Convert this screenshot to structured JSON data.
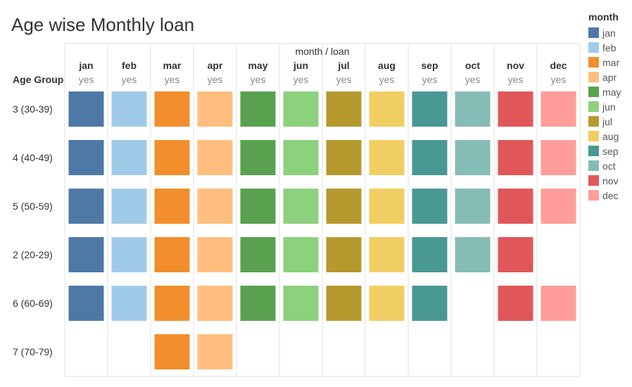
{
  "chart_data": {
    "type": "heatmap",
    "title": "Age wise Monthly loan",
    "column_header": "month  /  loan",
    "row_header": "Age Group",
    "columns": [
      {
        "month": "jan",
        "loan": "yes"
      },
      {
        "month": "feb",
        "loan": "yes"
      },
      {
        "month": "mar",
        "loan": "yes"
      },
      {
        "month": "apr",
        "loan": "yes"
      },
      {
        "month": "may",
        "loan": "yes"
      },
      {
        "month": "jun",
        "loan": "yes"
      },
      {
        "month": "jul",
        "loan": "yes"
      },
      {
        "month": "aug",
        "loan": "yes"
      },
      {
        "month": "sep",
        "loan": "yes"
      },
      {
        "month": "oct",
        "loan": "yes"
      },
      {
        "month": "nov",
        "loan": "yes"
      },
      {
        "month": "dec",
        "loan": "yes"
      }
    ],
    "rows": [
      "3 (30-39)",
      "4 (40-49)",
      "5 (50-59)",
      "2 (20-29)",
      "6 (60-69)",
      "7 (70-79)"
    ],
    "present": [
      [
        1,
        1,
        1,
        1,
        1,
        1,
        1,
        1,
        1,
        1,
        1,
        1
      ],
      [
        1,
        1,
        1,
        1,
        1,
        1,
        1,
        1,
        1,
        1,
        1,
        1
      ],
      [
        1,
        1,
        1,
        1,
        1,
        1,
        1,
        1,
        1,
        1,
        1,
        1
      ],
      [
        1,
        1,
        1,
        1,
        1,
        1,
        1,
        1,
        1,
        1,
        1,
        0
      ],
      [
        1,
        1,
        1,
        1,
        1,
        1,
        1,
        1,
        1,
        0,
        1,
        1
      ],
      [
        0,
        0,
        1,
        1,
        0,
        0,
        0,
        0,
        0,
        0,
        0,
        0
      ]
    ],
    "legend": {
      "title": "month",
      "items": [
        {
          "label": "jan",
          "color": "#4e79a7"
        },
        {
          "label": "feb",
          "color": "#a0cbe8"
        },
        {
          "label": "mar",
          "color": "#f28e2b"
        },
        {
          "label": "apr",
          "color": "#ffbe7d"
        },
        {
          "label": "may",
          "color": "#59a14f"
        },
        {
          "label": "jun",
          "color": "#8cd17d"
        },
        {
          "label": "jul",
          "color": "#b6992d"
        },
        {
          "label": "aug",
          "color": "#f1ce63"
        },
        {
          "label": "sep",
          "color": "#499894"
        },
        {
          "label": "oct",
          "color": "#86bcb6"
        },
        {
          "label": "nov",
          "color": "#e15759"
        },
        {
          "label": "dec",
          "color": "#ff9d9a"
        }
      ],
      "placement": "right"
    }
  }
}
